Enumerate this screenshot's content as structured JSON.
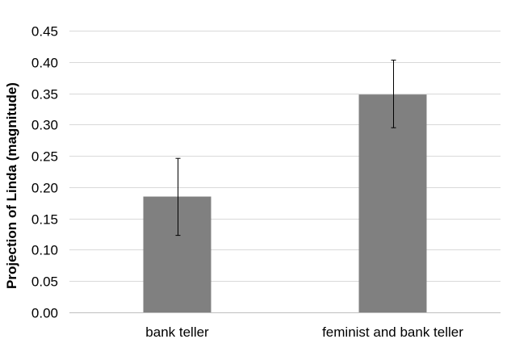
{
  "chart_data": {
    "type": "bar",
    "title": "",
    "xlabel": "",
    "ylabel": "Projection of Linda (magnitude)",
    "categories": [
      "bank teller",
      "feminist and bank teller"
    ],
    "values": [
      0.185,
      0.348
    ],
    "error_low": [
      0.123,
      0.295
    ],
    "error_high": [
      0.246,
      0.403
    ],
    "ylim": [
      0,
      0.45
    ],
    "yticks": [
      "0.00",
      "0.05",
      "0.10",
      "0.15",
      "0.20",
      "0.25",
      "0.30",
      "0.35",
      "0.40",
      "0.45"
    ],
    "grid": true,
    "legend": "none",
    "bar_color": "#808080",
    "grid_color": "#d9d9d9",
    "axis_color": "#bfbfbf",
    "error_bar_color": "#000000"
  }
}
